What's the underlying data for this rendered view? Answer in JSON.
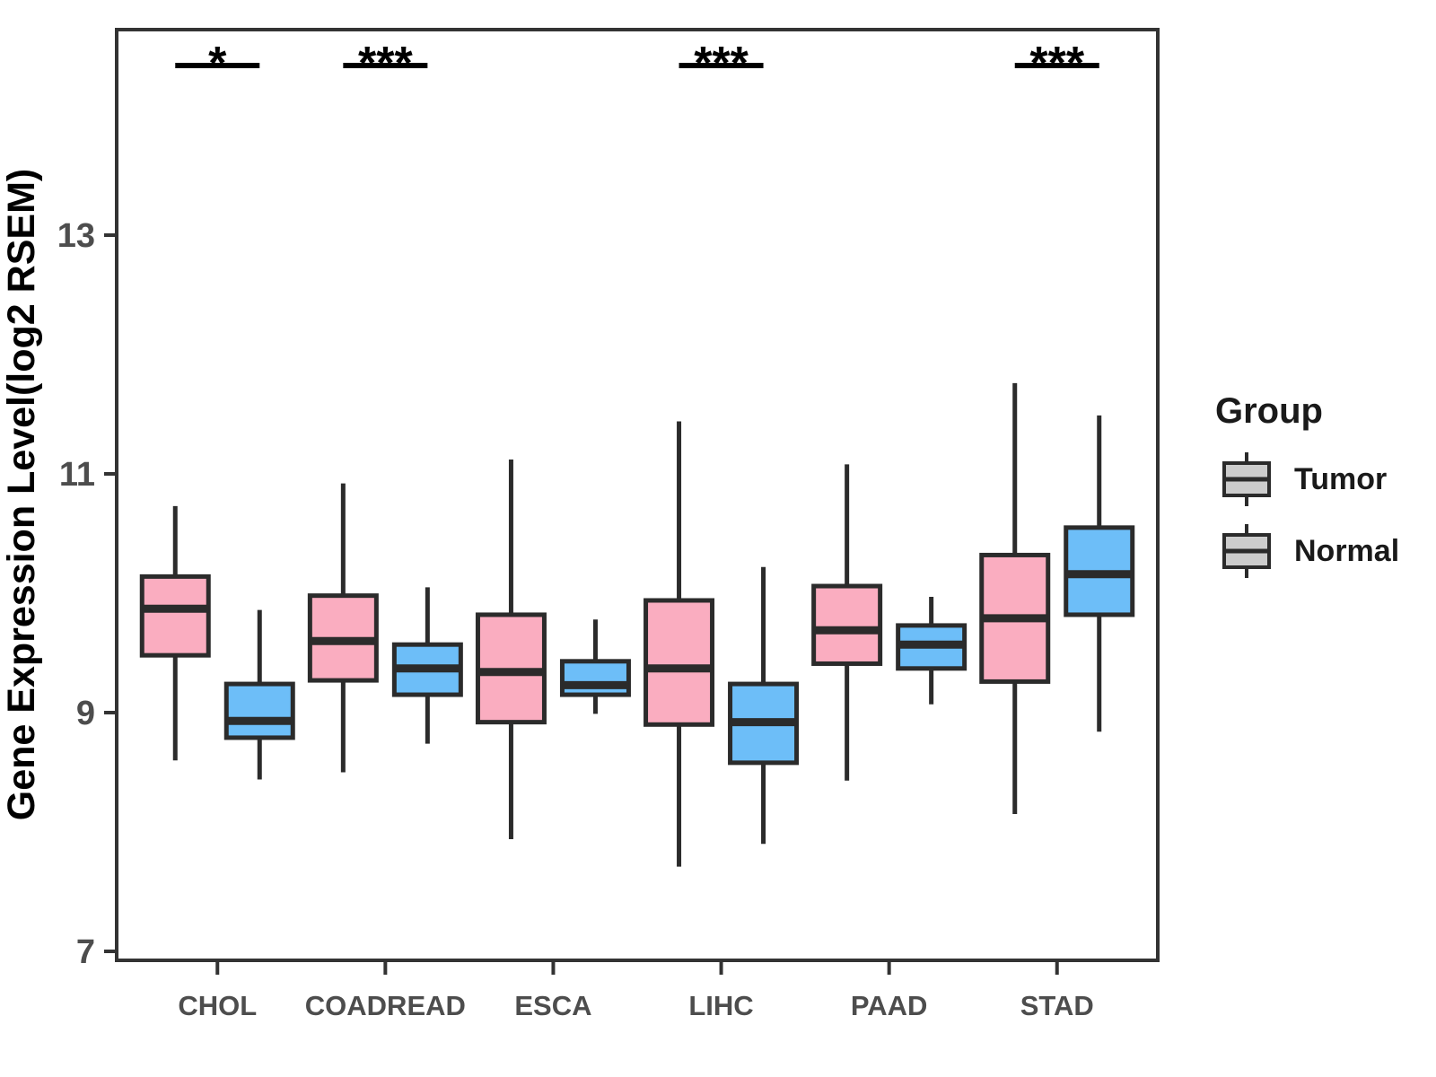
{
  "chart_data": {
    "type": "boxplot",
    "title": "",
    "xlabel": "",
    "ylabel": "Gene Expression Level(log2 RSEM)",
    "categories": [
      "CHOL",
      "COADREAD",
      "ESCA",
      "LIHC",
      "PAAD",
      "STAD"
    ],
    "yticks": [
      7,
      9,
      11,
      13
    ],
    "ylim": [
      6.9,
      14.75
    ],
    "grid": false,
    "legend": {
      "title": "Group",
      "position": "right"
    },
    "box_stat_order": [
      "whisker_low",
      "q1",
      "median",
      "q3",
      "whisker_high"
    ],
    "series": [
      {
        "name": "Tumor",
        "color": "#FAADC0",
        "values": [
          [
            8.6,
            9.48,
            9.87,
            10.14,
            10.73
          ],
          [
            8.5,
            9.27,
            9.6,
            9.98,
            10.92
          ],
          [
            7.94,
            8.92,
            9.34,
            9.82,
            11.12
          ],
          [
            7.71,
            8.9,
            9.37,
            9.94,
            11.44
          ],
          [
            8.43,
            9.41,
            9.69,
            10.06,
            11.08
          ],
          [
            8.15,
            9.26,
            9.79,
            10.32,
            11.76
          ]
        ]
      },
      {
        "name": "Normal",
        "color": "#6DBEF8",
        "values": [
          [
            8.44,
            8.79,
            8.93,
            9.24,
            9.86
          ],
          [
            8.74,
            9.15,
            9.37,
            9.57,
            10.05
          ],
          [
            8.99,
            9.15,
            9.23,
            9.43,
            9.78
          ],
          [
            7.9,
            8.58,
            8.92,
            9.24,
            10.22
          ],
          [
            9.07,
            9.37,
            9.57,
            9.73,
            9.97
          ],
          [
            8.84,
            9.82,
            10.16,
            10.55,
            11.49
          ]
        ]
      }
    ],
    "significance": [
      {
        "category": "CHOL",
        "label": "*"
      },
      {
        "category": "COADREAD",
        "label": "***"
      },
      {
        "category": "LIHC",
        "label": "***"
      },
      {
        "category": "STAD",
        "label": "***"
      }
    ],
    "colors": {
      "box_stroke": "#2B2B2B",
      "panel_border": "#333333",
      "tick_text": "#4D4D4D",
      "significance": "#000000"
    }
  }
}
